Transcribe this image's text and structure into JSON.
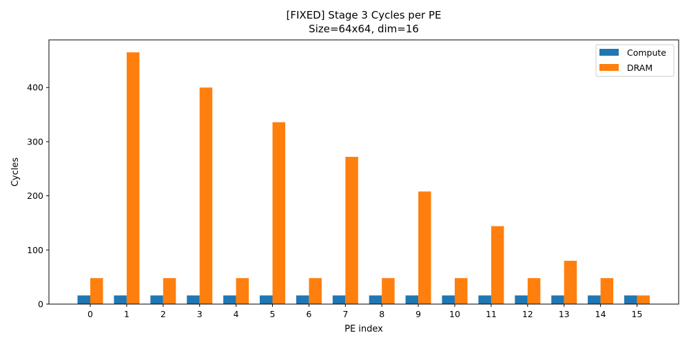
{
  "chart_data": {
    "type": "bar",
    "title": "[FIXED] Stage 3 Cycles per PE",
    "subtitle": "Size=64x64, dim=16",
    "xlabel": "PE index",
    "ylabel": "Cycles",
    "categories": [
      "0",
      "1",
      "2",
      "3",
      "4",
      "5",
      "6",
      "7",
      "8",
      "9",
      "10",
      "11",
      "12",
      "13",
      "14",
      "15"
    ],
    "series": [
      {
        "name": "Compute",
        "color": "#1f77b4",
        "values": [
          16,
          16,
          16,
          16,
          16,
          16,
          16,
          16,
          16,
          16,
          16,
          16,
          16,
          16,
          16,
          16
        ]
      },
      {
        "name": "DRAM",
        "color": "#ff7f0e",
        "values": [
          48,
          465,
          48,
          400,
          48,
          336,
          48,
          272,
          48,
          208,
          48,
          144,
          48,
          80,
          48,
          16
        ]
      }
    ],
    "yticks": [
      0,
      100,
      200,
      300,
      400
    ],
    "ylim": [
      0,
      488
    ],
    "grid": false,
    "legend_position": "top-right"
  }
}
